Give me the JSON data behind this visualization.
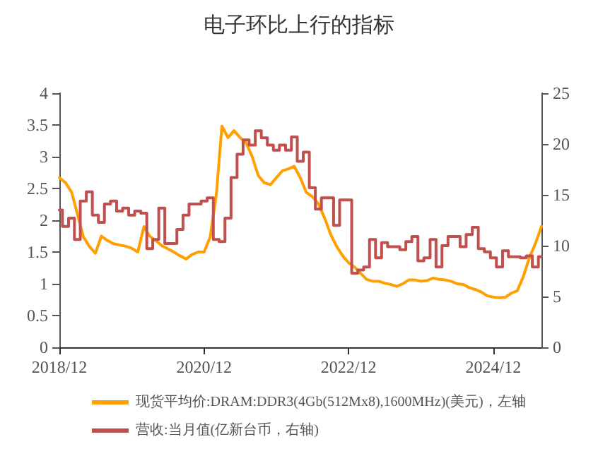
{
  "chart_data": {
    "type": "line",
    "title": "电子环比上行的指标",
    "x": [
      "2018-12",
      "2019-01",
      "2019-02",
      "2019-03",
      "2019-04",
      "2019-05",
      "2019-06",
      "2019-07",
      "2019-08",
      "2019-09",
      "2019-10",
      "2019-11",
      "2019-12",
      "2020-01",
      "2020-02",
      "2020-03",
      "2020-04",
      "2020-05",
      "2020-06",
      "2020-07",
      "2020-08",
      "2020-09",
      "2020-10",
      "2020-11",
      "2020-12",
      "2021-01",
      "2021-02",
      "2021-03",
      "2021-04",
      "2021-05",
      "2021-06",
      "2021-07",
      "2021-08",
      "2021-09",
      "2021-10",
      "2021-11",
      "2021-12",
      "2022-01",
      "2022-02",
      "2022-03",
      "2022-04",
      "2022-05",
      "2022-06",
      "2022-07",
      "2022-08",
      "2022-09",
      "2022-10",
      "2022-11",
      "2022-12",
      "2023-01",
      "2023-02",
      "2023-03",
      "2023-04",
      "2023-05",
      "2023-06",
      "2023-07",
      "2023-08",
      "2023-09",
      "2023-10",
      "2023-11",
      "2023-12",
      "2024-01",
      "2024-02",
      "2024-03",
      "2024-04",
      "2024-05",
      "2024-06",
      "2024-07",
      "2024-08",
      "2024-09",
      "2024-10",
      "2024-11",
      "2024-12",
      "2025-01",
      "2025-02",
      "2025-03",
      "2025-04",
      "2025-05",
      "2025-06",
      "2025-07",
      "2025-08"
    ],
    "series": [
      {
        "name": "现货平均价:DRAM:DDR3(4Gb(512Mx8),1600MHz)(美元)，左轴",
        "color": "#ffa000",
        "values": [
          2.67,
          2.59,
          2.44,
          2.11,
          1.74,
          1.59,
          1.48,
          1.75,
          1.68,
          1.63,
          1.61,
          1.59,
          1.56,
          1.5,
          1.9,
          1.75,
          1.68,
          1.6,
          1.55,
          1.5,
          1.44,
          1.39,
          1.46,
          1.5,
          1.5,
          1.74,
          2.41,
          3.48,
          3.3,
          3.41,
          3.3,
          3.22,
          3.0,
          2.7,
          2.59,
          2.56,
          2.67,
          2.78,
          2.81,
          2.85,
          2.67,
          2.44,
          2.37,
          2.26,
          2.04,
          1.78,
          1.59,
          1.44,
          1.33,
          1.26,
          1.16,
          1.07,
          1.04,
          1.04,
          1.01,
          0.99,
          0.96,
          1.0,
          1.06,
          1.06,
          1.04,
          1.05,
          1.09,
          1.07,
          1.06,
          1.04,
          1.0,
          0.99,
          0.94,
          0.91,
          0.87,
          0.81,
          0.79,
          0.78,
          0.79,
          0.85,
          0.89,
          1.11,
          1.41,
          1.63,
          1.9
        ]
      },
      {
        "name": "营收:当月值(亿新台币，右轴)",
        "color": "#c0504d",
        "type": "step",
        "axis": "y2",
        "values": [
          13.5,
          11.9,
          12.7,
          10.6,
          14.4,
          15.3,
          13.0,
          12.3,
          14.1,
          14.4,
          13.4,
          13.7,
          13.0,
          13.4,
          13.2,
          9.7,
          10.6,
          13.7,
          10.2,
          10.2,
          11.6,
          13.0,
          14.1,
          14.1,
          14.4,
          14.7,
          10.6,
          10.4,
          12.7,
          16.7,
          19.0,
          20.4,
          19.9,
          21.3,
          20.6,
          19.9,
          19.4,
          19.9,
          19.4,
          20.7,
          18.3,
          19.2,
          15.7,
          13.6,
          14.7,
          14.7,
          12.0,
          14.5,
          14.5,
          7.3,
          7.6,
          7.9,
          10.6,
          8.8,
          10.3,
          9.9,
          9.9,
          9.6,
          10.4,
          10.9,
          8.5,
          8.8,
          10.6,
          7.9,
          10.0,
          10.9,
          10.9,
          9.9,
          11.1,
          11.8,
          9.7,
          9.4,
          8.8,
          7.9,
          9.5,
          8.9,
          8.9,
          8.8,
          9.0,
          7.9,
          8.9
        ]
      }
    ],
    "xlim": [
      "2018-12",
      "2025-08"
    ],
    "xticks": [
      {
        "value": "2018-12",
        "label": "2018/12"
      },
      {
        "value": "2020-12",
        "label": "2020/12"
      },
      {
        "value": "2022-12",
        "label": "2022/12"
      },
      {
        "value": "2024-12",
        "label": "2024/12"
      }
    ],
    "ylim": [
      0,
      4
    ],
    "yticks": [
      0,
      0.5,
      1,
      1.5,
      2,
      2.5,
      3,
      3.5,
      4
    ],
    "y2lim": [
      0,
      25
    ],
    "y2ticks": [
      0,
      5,
      10,
      15,
      20,
      25
    ],
    "grid": false,
    "legend": "bottom",
    "marker": "none",
    "line_style": "solid"
  }
}
